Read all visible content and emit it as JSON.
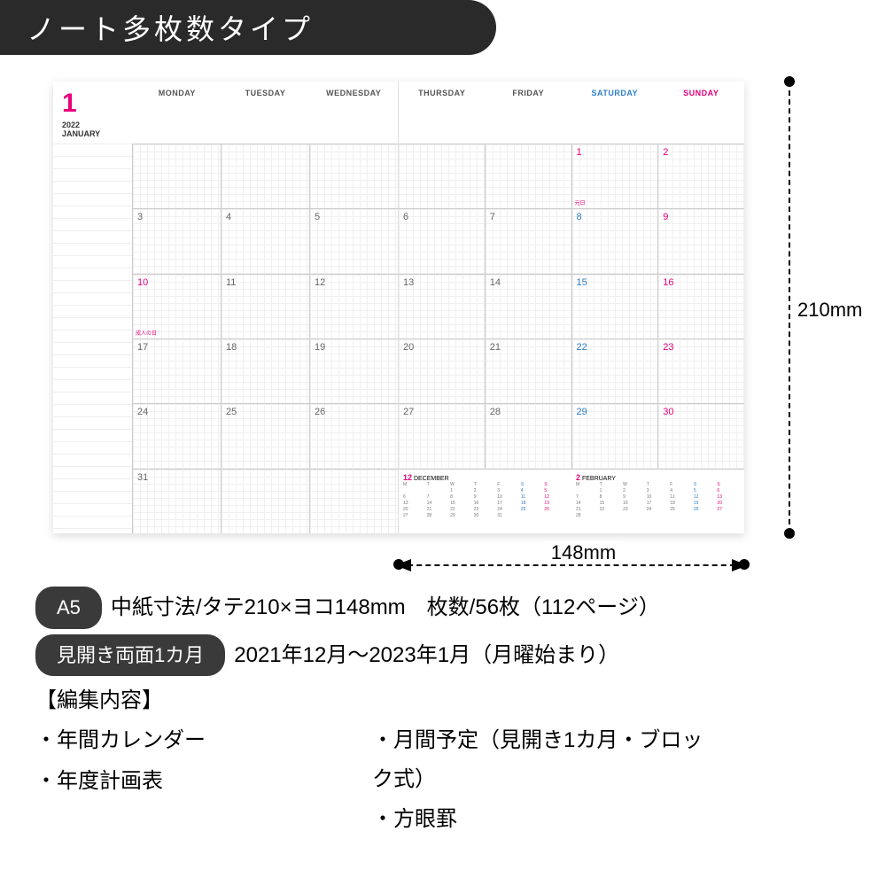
{
  "header": {
    "title": "ノート多枚数タイプ"
  },
  "calendar": {
    "month_number": "1",
    "year": "2022",
    "month_name": "JANUARY",
    "day_headers_left": [
      "MONDAY",
      "TUESDAY",
      "WEDNESDAY"
    ],
    "day_headers_right": [
      "THURSDAY",
      "FRIDAY",
      "SATURDAY",
      "SUNDAY"
    ],
    "weeks": [
      [
        {
          "d": "",
          "c": ""
        },
        {
          "d": "",
          "c": ""
        },
        {
          "d": "",
          "c": ""
        },
        {
          "d": "",
          "c": ""
        },
        {
          "d": "",
          "c": ""
        },
        {
          "d": "1",
          "c": "red",
          "h": "元日"
        },
        {
          "d": "2",
          "c": "red"
        }
      ],
      [
        {
          "d": "3",
          "c": ""
        },
        {
          "d": "4",
          "c": ""
        },
        {
          "d": "5",
          "c": ""
        },
        {
          "d": "6",
          "c": ""
        },
        {
          "d": "7",
          "c": ""
        },
        {
          "d": "8",
          "c": "blue"
        },
        {
          "d": "9",
          "c": "red"
        }
      ],
      [
        {
          "d": "10",
          "c": "red",
          "h": "成人の日"
        },
        {
          "d": "11",
          "c": ""
        },
        {
          "d": "12",
          "c": ""
        },
        {
          "d": "13",
          "c": ""
        },
        {
          "d": "14",
          "c": ""
        },
        {
          "d": "15",
          "c": "blue"
        },
        {
          "d": "16",
          "c": "red"
        }
      ],
      [
        {
          "d": "17",
          "c": ""
        },
        {
          "d": "18",
          "c": ""
        },
        {
          "d": "19",
          "c": ""
        },
        {
          "d": "20",
          "c": ""
        },
        {
          "d": "21",
          "c": ""
        },
        {
          "d": "22",
          "c": "blue"
        },
        {
          "d": "23",
          "c": "red"
        }
      ],
      [
        {
          "d": "24",
          "c": ""
        },
        {
          "d": "25",
          "c": ""
        },
        {
          "d": "26",
          "c": ""
        },
        {
          "d": "27",
          "c": ""
        },
        {
          "d": "28",
          "c": ""
        },
        {
          "d": "29",
          "c": "blue"
        },
        {
          "d": "30",
          "c": "red"
        }
      ],
      [
        {
          "d": "31",
          "c": ""
        },
        {
          "d": "",
          "c": ""
        },
        {
          "d": "",
          "c": ""
        },
        {
          "d": "",
          "c": ""
        },
        {
          "d": "",
          "c": ""
        },
        {
          "d": "",
          "c": ""
        },
        {
          "d": "",
          "c": ""
        }
      ]
    ],
    "mini_cals": [
      {
        "num": "12",
        "name": "DECEMBER",
        "days": [
          "M",
          "T",
          "W",
          "T",
          "F",
          "S",
          "S",
          "",
          "",
          "1",
          "2",
          "3",
          "4",
          "5",
          "6",
          "7",
          "8",
          "9",
          "10",
          "11",
          "12",
          "13",
          "14",
          "15",
          "16",
          "17",
          "18",
          "19",
          "20",
          "21",
          "22",
          "23",
          "24",
          "25",
          "26",
          "27",
          "28",
          "29",
          "30",
          "31"
        ]
      },
      {
        "num": "2",
        "name": "FEBRUARY",
        "days": [
          "M",
          "T",
          "W",
          "T",
          "F",
          "S",
          "S",
          "",
          "1",
          "2",
          "3",
          "4",
          "5",
          "6",
          "7",
          "8",
          "9",
          "10",
          "11",
          "12",
          "13",
          "14",
          "15",
          "16",
          "17",
          "18",
          "19",
          "20",
          "21",
          "22",
          "23",
          "24",
          "25",
          "26",
          "27",
          "28"
        ]
      }
    ]
  },
  "dimensions": {
    "height": "210mm",
    "width": "148mm"
  },
  "specs": {
    "size_badge": "A5",
    "size_text": "中紙寸法/タテ210×ヨコ148mm　枚数/56枚（112ページ）",
    "spread_badge": "見開き両面1カ月",
    "spread_text": "2021年12月～2023年1月（月曜始まり）",
    "edit_label": "【編集内容】",
    "features_left": [
      "・年間カレンダー",
      "・年度計画表"
    ],
    "features_right": [
      "・月間予定（見開き1カ月・ブロック式）",
      "・方眼罫"
    ]
  },
  "colors": {
    "header_bg": "#2a2a2a",
    "accent_red": "#e6007e",
    "accent_blue": "#2b7ec8",
    "text": "#333333"
  }
}
